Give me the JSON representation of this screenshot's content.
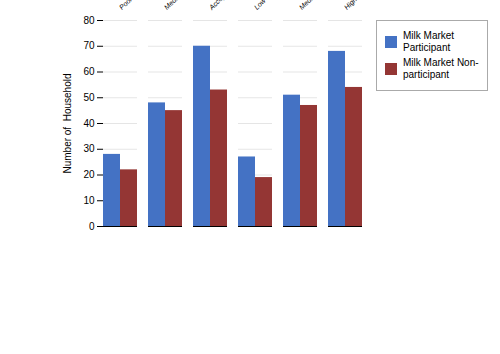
{
  "chart_data": {
    "type": "bar",
    "categories": [
      "Poor FCS(Food Consumption Score)",
      "Medium FCS(Food Consumption Score)",
      "Acceptable FCS(Food Consumption Score)",
      "Low HDDS(Household Dietary Diversity)",
      "Medium HDDS(Household Dietary Diversity)",
      "High HDDS(Household Dietary Diversity)"
    ],
    "series": [
      {
        "name": "Milk Market\nParticipant",
        "color": "#4472C4",
        "values": [
          28,
          48,
          70,
          27,
          51,
          68
        ]
      },
      {
        "name": "Milk Market Non-\nparticipant",
        "color": "#943634",
        "values": [
          22,
          45,
          53,
          19,
          47,
          54
        ]
      }
    ],
    "ylabel": "Number of  Household",
    "ylim": [
      0,
      80
    ],
    "yticks": [
      0,
      10,
      20,
      30,
      40,
      50,
      60,
      70,
      80
    ],
    "grid": true,
    "legend": "right"
  }
}
